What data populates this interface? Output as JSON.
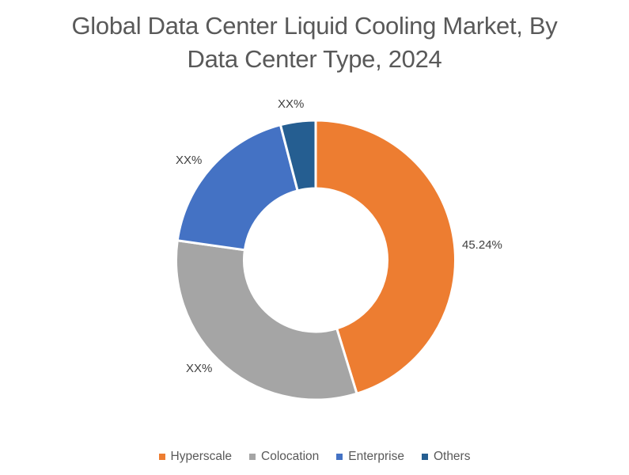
{
  "title": {
    "line1": "Global Data Center Liquid Cooling Market, By",
    "line2": "Data Center Type, 2024"
  },
  "labels": {
    "hyperscale": "45.24%",
    "colocation": "XX%",
    "enterprise": "XX%",
    "others": "XX%"
  },
  "legend": [
    {
      "label": "Hyperscale",
      "color": "#ED7D31"
    },
    {
      "label": "Colocation",
      "color": "#A5A5A5"
    },
    {
      "label": "Enterprise",
      "color": "#4472C4"
    },
    {
      "label": "Others",
      "color": "#255E91"
    }
  ],
  "chart_data": {
    "type": "pie",
    "subtype": "donut",
    "title": "Global Data Center Liquid Cooling Market, By Data Center Type, 2024",
    "categories": [
      "Hyperscale",
      "Colocation",
      "Enterprise",
      "Others"
    ],
    "values": [
      45.24,
      32.0,
      18.7,
      4.06
    ],
    "data_labels": [
      "45.24%",
      "XX%",
      "XX%",
      "XX%"
    ],
    "colors": [
      "#ED7D31",
      "#A5A5A5",
      "#4472C4",
      "#255E91"
    ],
    "legend_position": "bottom",
    "start_angle": 0,
    "direction": "clockwise"
  }
}
